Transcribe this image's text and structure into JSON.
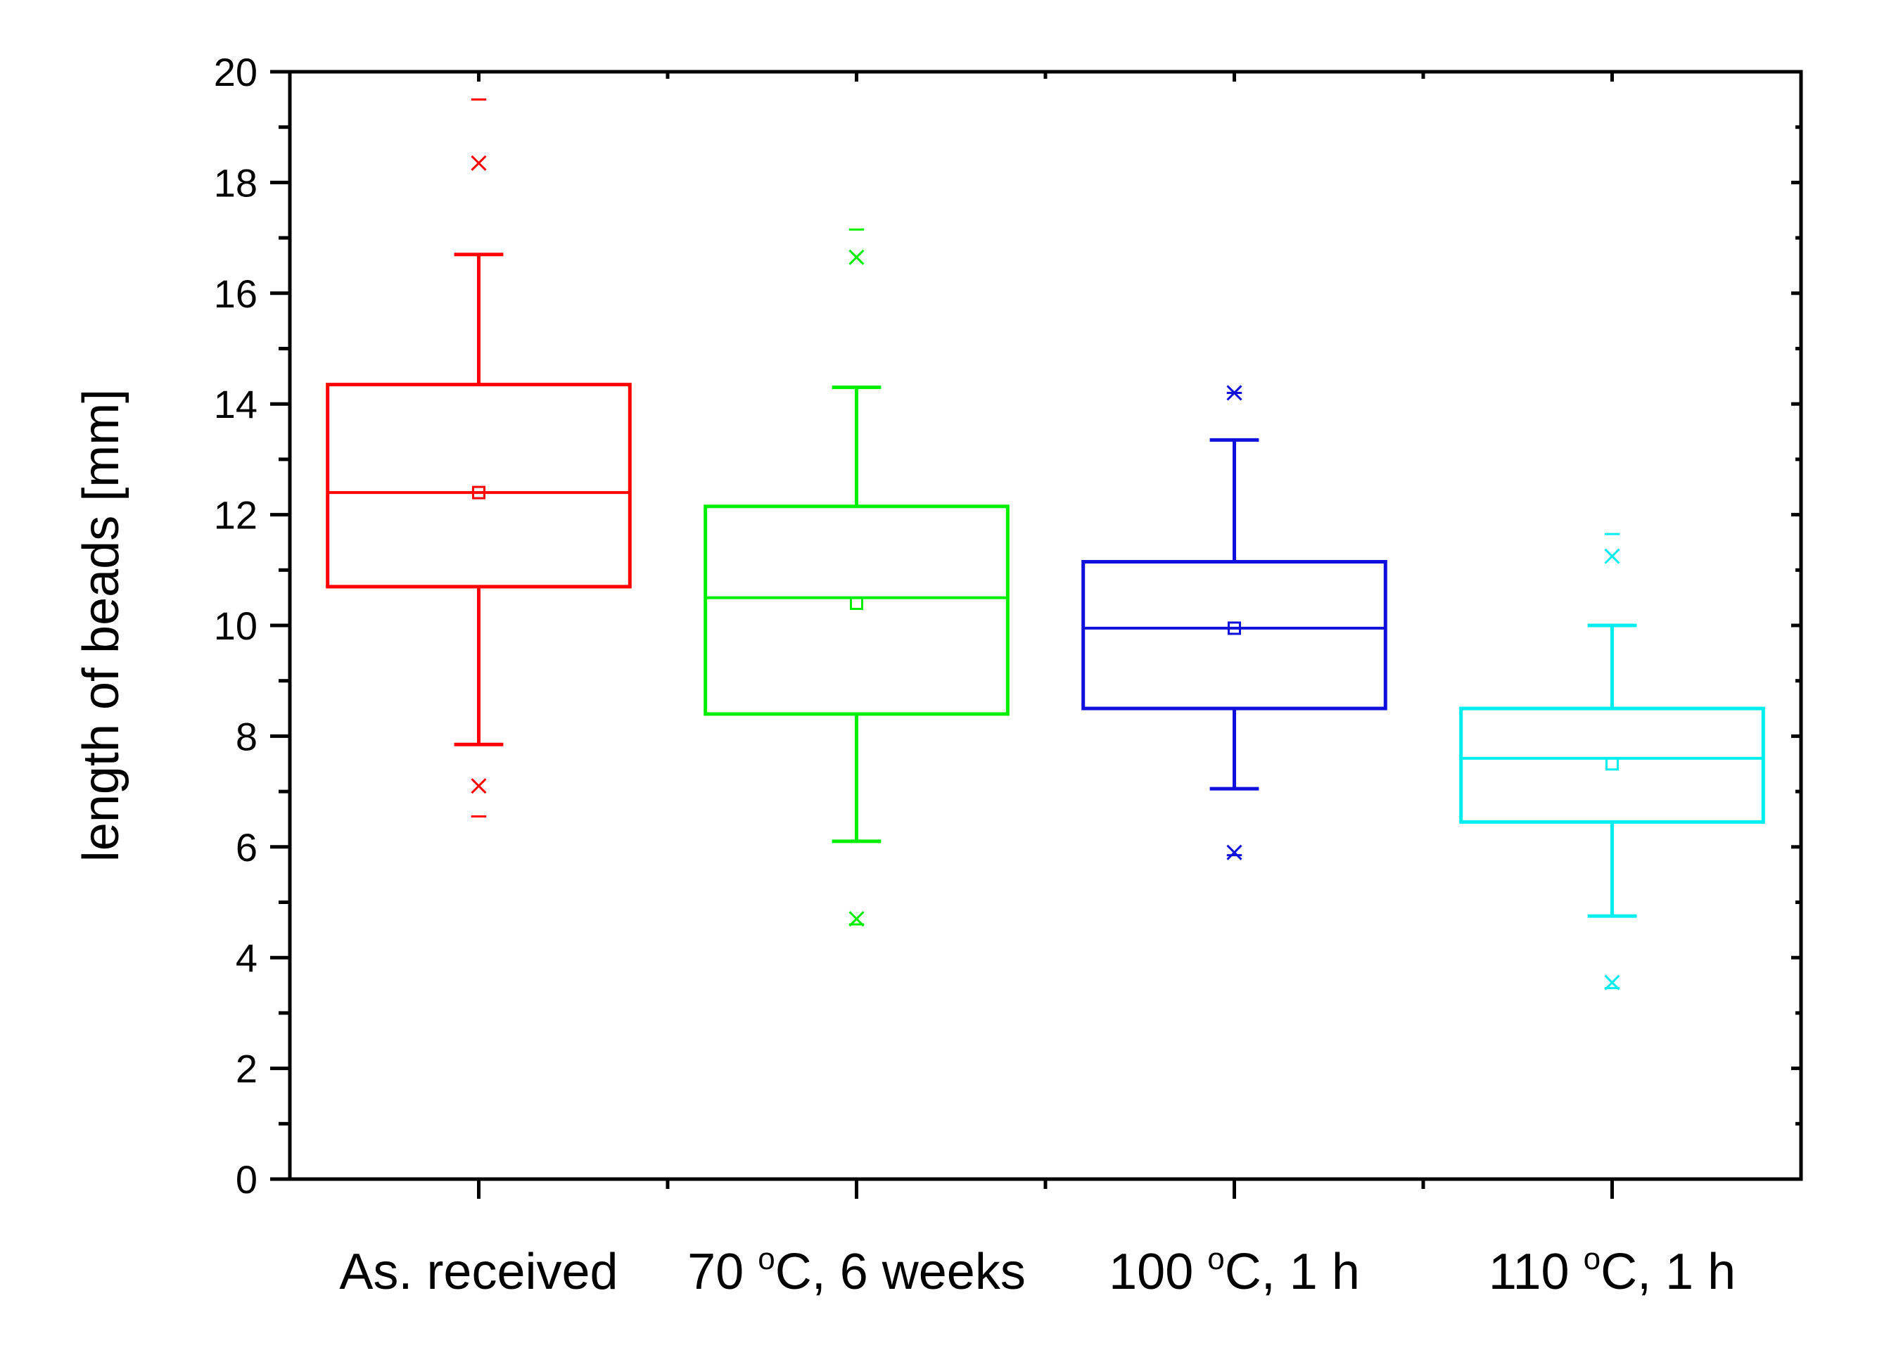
{
  "chart_data": {
    "type": "box",
    "title": "",
    "xlabel": "",
    "ylabel": "length of beads [mm]",
    "ylim": [
      0,
      20
    ],
    "yticks": [
      0,
      2,
      4,
      6,
      8,
      10,
      12,
      14,
      16,
      18,
      20
    ],
    "grid": false,
    "legend": "none",
    "series": [
      {
        "name": "As. received",
        "label_parts": [
          "As. received"
        ],
        "color": "#ff0000",
        "whisker_low": 7.85,
        "q1": 10.7,
        "median": 12.4,
        "mean": 12.4,
        "q3": 14.35,
        "whisker_high": 16.7,
        "outliers_x": [
          7.1,
          18.35
        ],
        "min": 6.55,
        "max": 19.5
      },
      {
        "name": "70 °C, 6 weeks",
        "label_parts": [
          "70 ",
          "o",
          "C, 6 weeks"
        ],
        "color": "#00ee00",
        "whisker_low": 6.1,
        "q1": 8.4,
        "median": 10.5,
        "mean": 10.4,
        "q3": 12.15,
        "whisker_high": 14.3,
        "outliers_x": [
          4.7,
          16.65
        ],
        "min": 4.6,
        "max": 17.15
      },
      {
        "name": "100 °C, 1 h",
        "label_parts": [
          "100 ",
          "o",
          "C, 1 h"
        ],
        "color": "#1010dd",
        "whisker_low": 7.05,
        "q1": 8.5,
        "median": 9.95,
        "mean": 9.95,
        "q3": 11.15,
        "whisker_high": 13.35,
        "outliers_x": [
          5.9,
          14.2
        ],
        "min": 5.85,
        "max": 14.2
      },
      {
        "name": "110 °C, 1 h",
        "label_parts": [
          "110 ",
          "o",
          "C, 1 h"
        ],
        "color": "#00eeee",
        "whisker_low": 4.75,
        "q1": 6.45,
        "median": 7.6,
        "mean": 7.5,
        "q3": 8.5,
        "whisker_high": 10.0,
        "outliers_x": [
          3.55,
          11.25
        ],
        "min": 3.45,
        "max": 11.65
      }
    ]
  }
}
